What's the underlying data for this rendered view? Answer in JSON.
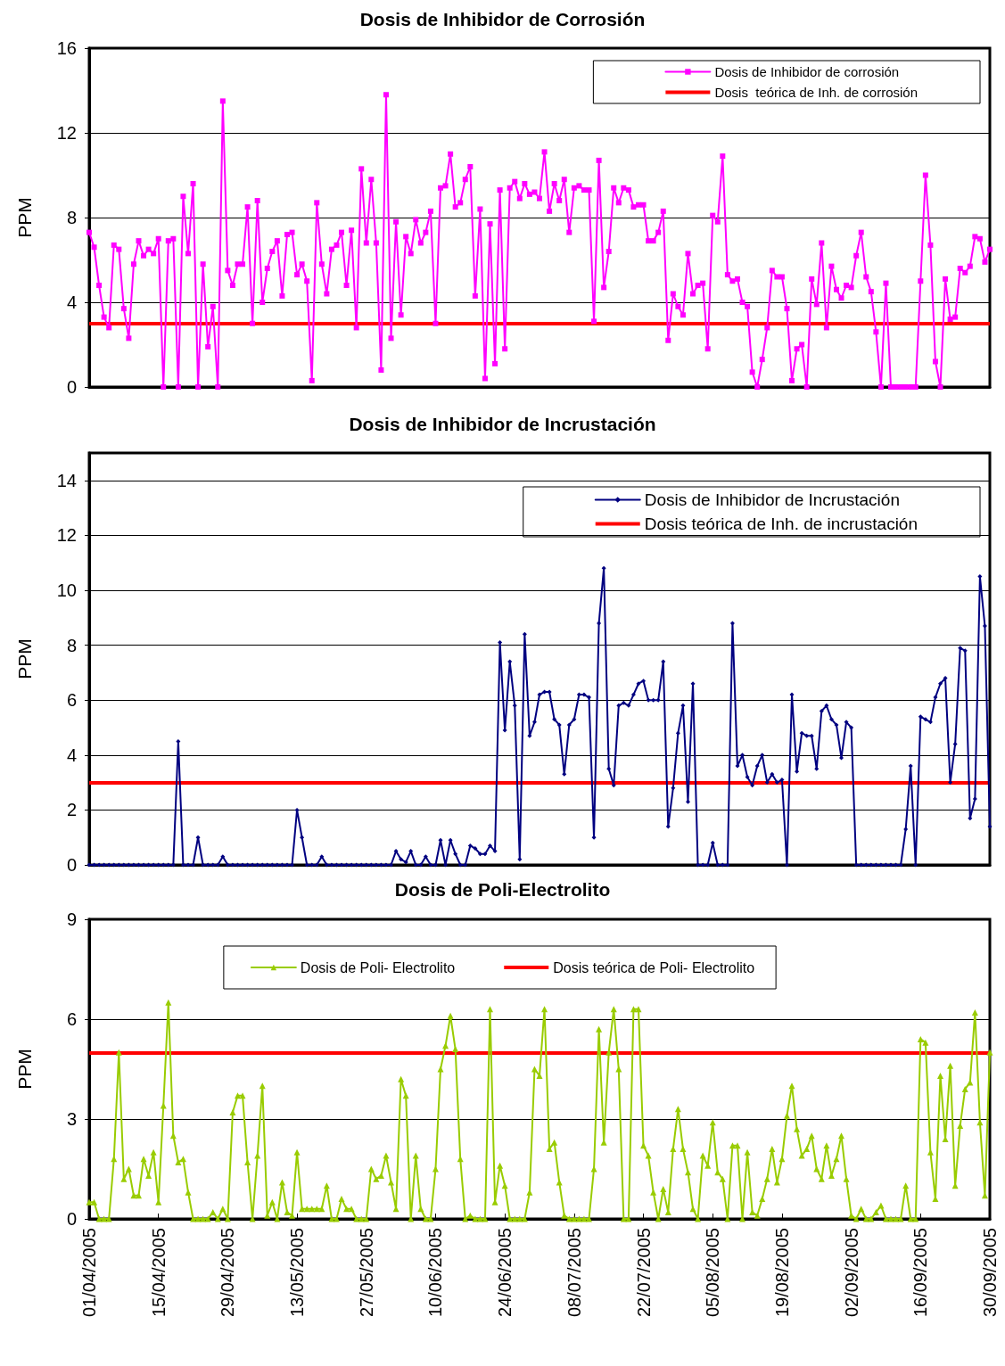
{
  "chart_data": [
    {
      "type": "line",
      "title": "Dosis de Inhibidor de Corrosión",
      "ylabel": "PPM",
      "categories": [
        null,
        null,
        null,
        null,
        null,
        null,
        null,
        null,
        null,
        null,
        null,
        null,
        null,
        null,
        null,
        null,
        null,
        null,
        null,
        null,
        null,
        null,
        null,
        null,
        null,
        null,
        null,
        null,
        null,
        null,
        null,
        null,
        null,
        null,
        null,
        null,
        null,
        null,
        null,
        null,
        null,
        null,
        null,
        null,
        null,
        null,
        null,
        null,
        null,
        null,
        null,
        null,
        null,
        null,
        null,
        null,
        null,
        null,
        null,
        null,
        null,
        null,
        null,
        null,
        null,
        null,
        null,
        null,
        null,
        null,
        null,
        null,
        null,
        null,
        null,
        null,
        null,
        null,
        null,
        null,
        null,
        null,
        null,
        null,
        null,
        null,
        null,
        null,
        null,
        null,
        null,
        null,
        null,
        null,
        null,
        null,
        null,
        null,
        null,
        null,
        null,
        null,
        null,
        null,
        null,
        null,
        null,
        null,
        null,
        null,
        null,
        null,
        null,
        null,
        null,
        null,
        null,
        null,
        null,
        null,
        null,
        null,
        null,
        null,
        null,
        null,
        null,
        null,
        null,
        null,
        null,
        null,
        null,
        null,
        null,
        null,
        null,
        null,
        null,
        null,
        null,
        null,
        null,
        null,
        null,
        null,
        null,
        null,
        null,
        null,
        null,
        null,
        null,
        null,
        null,
        null,
        null,
        null,
        null,
        null,
        null,
        null,
        null,
        null,
        null,
        null,
        null,
        null,
        null,
        null,
        null,
        null,
        null,
        null,
        null,
        null,
        null,
        null,
        null,
        null,
        null,
        null,
        null
      ],
      "series": [
        {
          "name": "Dosis de Inhibidor de corrosión",
          "color": "#ff00ff",
          "values": [
            7.3,
            6.6,
            4.8,
            3.3,
            2.8,
            6.7,
            6.5,
            3.7,
            2.3,
            5.8,
            6.9,
            6.2,
            6.5,
            6.3,
            7.0,
            0,
            6.9,
            7.0,
            0,
            9.0,
            6.3,
            9.6,
            0,
            5.8,
            1.9,
            3.8,
            0,
            13.5,
            5.5,
            4.8,
            5.8,
            5.8,
            8.5,
            3.0,
            8.8,
            4.0,
            5.6,
            6.4,
            6.9,
            4.3,
            7.2,
            7.3,
            5.3,
            5.8,
            5.0,
            0.3,
            8.7,
            5.8,
            4.4,
            6.5,
            6.7,
            7.3,
            4.8,
            7.4,
            2.8,
            10.3,
            6.8,
            9.8,
            6.8,
            0.8,
            13.8,
            2.3,
            7.8,
            3.4,
            7.1,
            6.3,
            7.9,
            6.8,
            7.3,
            8.3,
            3.0,
            9.4,
            9.5,
            11.0,
            8.5,
            8.7,
            9.8,
            10.4,
            4.3,
            8.4,
            0.4,
            7.7,
            1.1,
            9.3,
            1.8,
            9.4,
            9.7,
            8.9,
            9.6,
            9.1,
            9.2,
            8.9,
            11.1,
            8.3,
            9.6,
            8.8,
            9.8,
            7.3,
            9.4,
            9.5,
            9.3,
            9.3,
            3.1,
            10.7,
            4.7,
            6.4,
            9.4,
            8.7,
            9.4,
            9.3,
            8.5,
            8.6,
            8.6,
            6.9,
            6.9,
            7.3,
            8.3,
            2.2,
            4.4,
            3.8,
            3.4,
            6.3,
            4.4,
            4.8,
            4.9,
            1.8,
            8.1,
            7.8,
            10.9,
            5.3,
            5.0,
            5.1,
            4.0,
            3.8,
            0.7,
            0,
            1.3,
            2.8,
            5.5,
            5.2,
            5.2,
            3.7,
            0.3,
            1.8,
            2.0,
            0,
            5.1,
            3.9,
            6.8,
            2.8,
            5.7,
            4.6,
            4.2,
            4.8,
            4.7,
            6.2,
            7.3,
            5.2,
            4.5,
            2.6,
            0,
            4.9,
            0,
            0,
            0,
            0,
            0,
            0,
            5.0,
            10.0,
            6.7,
            1.2,
            0,
            5.1,
            3.2,
            3.3,
            5.6,
            5.4,
            5.7,
            7.1,
            7.0,
            5.9,
            6.5
          ]
        }
      ],
      "ref_lines": [
        {
          "axis": "y",
          "value": 3,
          "label": "Dosis  teórica de Inh. de corrosión",
          "color": "#ff0000"
        }
      ],
      "ylim": [
        0,
        16
      ],
      "yticks": [
        0,
        4,
        8,
        12,
        16
      ],
      "grid": "y",
      "legend": "top right",
      "marker": "square",
      "line_style": "solid",
      "tick_labels": "y"
    },
    {
      "type": "line",
      "title": "Dosis de Inhibidor de Incrustación",
      "ylabel": "PPM",
      "categories": [
        null,
        null,
        null,
        null,
        null,
        null,
        null,
        null,
        null,
        null,
        null,
        null,
        null,
        null,
        null,
        null,
        null,
        null,
        null,
        null,
        null,
        null,
        null,
        null,
        null,
        null,
        null,
        null,
        null,
        null,
        null,
        null,
        null,
        null,
        null,
        null,
        null,
        null,
        null,
        null,
        null,
        null,
        null,
        null,
        null,
        null,
        null,
        null,
        null,
        null,
        null,
        null,
        null,
        null,
        null,
        null,
        null,
        null,
        null,
        null,
        null,
        null,
        null,
        null,
        null,
        null,
        null,
        null,
        null,
        null,
        null,
        null,
        null,
        null,
        null,
        null,
        null,
        null,
        null,
        null,
        null,
        null,
        null,
        null,
        null,
        null,
        null,
        null,
        null,
        null,
        null,
        null,
        null,
        null,
        null,
        null,
        null,
        null,
        null,
        null,
        null,
        null,
        null,
        null,
        null,
        null,
        null,
        null,
        null,
        null,
        null,
        null,
        null,
        null,
        null,
        null,
        null,
        null,
        null,
        null,
        null,
        null,
        null,
        null,
        null,
        null,
        null,
        null,
        null,
        null,
        null,
        null,
        null,
        null,
        null,
        null,
        null,
        null,
        null,
        null,
        null,
        null,
        null,
        null,
        null,
        null,
        null,
        null,
        null,
        null,
        null,
        null,
        null,
        null,
        null,
        null,
        null,
        null,
        null,
        null,
        null,
        null,
        null,
        null,
        null,
        null,
        null,
        null,
        null,
        null,
        null,
        null,
        null,
        null,
        null,
        null,
        null,
        null,
        null,
        null,
        null,
        null,
        null
      ],
      "series": [
        {
          "name": "Dosis de Inhibidor de Incrustación",
          "color": "#000080",
          "values": [
            0,
            0,
            0,
            0,
            0,
            0,
            0,
            0,
            0,
            0,
            0,
            0,
            0,
            0,
            0,
            0,
            0,
            0,
            4.5,
            0,
            0,
            0,
            1.0,
            0,
            0,
            0,
            0,
            0.3,
            0,
            0,
            0,
            0,
            0,
            0,
            0,
            0,
            0,
            0,
            0,
            0,
            0,
            0,
            2.0,
            1.0,
            0,
            0,
            0,
            0.3,
            0,
            0,
            0,
            0,
            0,
            0,
            0,
            0,
            0,
            0,
            0,
            0,
            0,
            0,
            0.5,
            0.2,
            0.1,
            0.5,
            0,
            0,
            0.3,
            0,
            0,
            0.9,
            0,
            0.9,
            0.4,
            0,
            0,
            0.7,
            0.6,
            0.4,
            0.4,
            0.7,
            0.5,
            8.1,
            4.9,
            7.4,
            5.8,
            0.2,
            8.4,
            4.7,
            5.2,
            6.2,
            6.3,
            6.3,
            5.3,
            5.1,
            3.3,
            5.1,
            5.3,
            6.2,
            6.2,
            6.1,
            1.0,
            8.8,
            10.8,
            3.5,
            2.9,
            5.8,
            5.9,
            5.8,
            6.2,
            6.6,
            6.7,
            6.0,
            6.0,
            6.0,
            7.4,
            1.4,
            2.8,
            4.8,
            5.8,
            2.3,
            6.6,
            0,
            0,
            0,
            0.8,
            0,
            0,
            0,
            8.8,
            3.6,
            4.0,
            3.2,
            2.9,
            3.6,
            4.0,
            3.0,
            3.3,
            3.0,
            3.1,
            0,
            6.2,
            3.4,
            4.8,
            4.7,
            4.7,
            3.5,
            5.6,
            5.8,
            5.3,
            5.1,
            3.9,
            5.2,
            5.0,
            0,
            0,
            0,
            0,
            0,
            0,
            0,
            0,
            0,
            0,
            1.3,
            3.6,
            0,
            5.4,
            5.3,
            5.2,
            6.1,
            6.6,
            6.8,
            3.0,
            4.4,
            7.9,
            7.8,
            1.7,
            2.4,
            10.5,
            8.7,
            1.4
          ]
        }
      ],
      "ref_lines": [
        {
          "axis": "y",
          "value": 3,
          "label": "Dosis teórica de Inh. de incrustación",
          "color": "#ff0000"
        }
      ],
      "ylim": [
        0,
        15
      ],
      "yticks": [
        0,
        2,
        4,
        6,
        8,
        10,
        12,
        14
      ],
      "grid": "y",
      "legend": "top right",
      "marker": "diamond",
      "line_style": "solid",
      "tick_labels": "y"
    },
    {
      "type": "line",
      "title": "Dosis de Poli-Electrolito",
      "ylabel": "PPM",
      "categories": [
        "01/04/2005",
        null,
        null,
        null,
        null,
        null,
        null,
        null,
        null,
        null,
        null,
        null,
        null,
        null,
        "15/04/2005",
        null,
        null,
        null,
        null,
        null,
        null,
        null,
        null,
        null,
        null,
        null,
        null,
        null,
        "29/04/2005",
        null,
        null,
        null,
        null,
        null,
        null,
        null,
        null,
        null,
        null,
        null,
        null,
        null,
        "13/05/2005",
        null,
        null,
        null,
        null,
        null,
        null,
        null,
        null,
        null,
        null,
        null,
        null,
        null,
        "27/05/2005",
        null,
        null,
        null,
        null,
        null,
        null,
        null,
        null,
        null,
        null,
        null,
        null,
        null,
        "10/06/2005",
        null,
        null,
        null,
        null,
        null,
        null,
        null,
        null,
        null,
        null,
        null,
        null,
        null,
        "24/06/2005",
        null,
        null,
        null,
        null,
        null,
        null,
        null,
        null,
        null,
        null,
        null,
        null,
        null,
        "08/07/2005",
        null,
        null,
        null,
        null,
        null,
        null,
        null,
        null,
        null,
        null,
        null,
        null,
        null,
        "22/07/2005",
        null,
        null,
        null,
        null,
        null,
        null,
        null,
        null,
        null,
        null,
        null,
        null,
        null,
        "05/08/2005",
        null,
        null,
        null,
        null,
        null,
        null,
        null,
        null,
        null,
        null,
        null,
        null,
        null,
        "19/08/2005",
        null,
        null,
        null,
        null,
        null,
        null,
        null,
        null,
        null,
        null,
        null,
        null,
        null,
        "02/09/2005",
        null,
        null,
        null,
        null,
        null,
        null,
        null,
        null,
        null,
        null,
        null,
        null,
        null,
        "16/09/2005",
        null,
        null,
        null,
        null,
        null,
        null,
        null,
        null,
        null,
        null,
        null,
        null,
        null,
        "30/09/2005"
      ],
      "series": [
        {
          "name": "Dosis de Poli- Electrolito",
          "color": "#99cc00",
          "values": [
            0.5,
            0.5,
            0,
            0,
            0,
            1.8,
            5.0,
            1.2,
            1.5,
            0.7,
            0.7,
            1.8,
            1.3,
            2.0,
            0.5,
            3.4,
            6.5,
            2.5,
            1.7,
            1.8,
            0.8,
            0,
            0,
            0,
            0,
            0.2,
            0,
            0.3,
            0,
            3.2,
            3.7,
            3.7,
            1.7,
            0,
            1.9,
            4.0,
            0.1,
            0.5,
            0,
            1.1,
            0.2,
            0.1,
            2.0,
            0.3,
            0.3,
            0.3,
            0.3,
            0.3,
            1.0,
            0,
            0,
            0.6,
            0.3,
            0.3,
            0,
            0,
            0,
            1.5,
            1.2,
            1.3,
            1.9,
            1.1,
            0.3,
            4.2,
            3.7,
            0,
            1.9,
            0.3,
            0,
            0,
            1.5,
            4.5,
            5.2,
            6.1,
            5.1,
            1.8,
            0,
            0.1,
            0,
            0,
            0,
            6.3,
            0.5,
            1.6,
            1.0,
            0,
            0,
            0,
            0,
            0.8,
            4.5,
            4.3,
            6.3,
            2.1,
            2.3,
            1.1,
            0.1,
            0,
            0,
            0,
            0,
            0,
            1.5,
            5.7,
            2.3,
            5.0,
            6.3,
            4.5,
            0,
            0,
            6.3,
            6.3,
            2.2,
            1.9,
            0.8,
            0,
            0.9,
            0.2,
            2.1,
            3.3,
            2.1,
            1.4,
            0.3,
            0,
            1.9,
            1.6,
            2.9,
            1.4,
            1.2,
            0,
            2.2,
            2.2,
            0,
            2.0,
            0.2,
            0.1,
            0.6,
            1.2,
            2.1,
            1.1,
            1.8,
            3.1,
            4.0,
            2.7,
            1.9,
            2.1,
            2.5,
            1.5,
            1.2,
            2.2,
            1.3,
            1.8,
            2.5,
            1.2,
            0.1,
            0,
            0.3,
            0,
            0,
            0.2,
            0.4,
            0,
            0,
            0,
            0,
            1.0,
            0,
            0,
            5.4,
            5.3,
            2.0,
            0.6,
            4.3,
            2.4,
            4.6,
            1.0,
            2.8,
            3.9,
            4.1,
            6.2,
            2.9,
            0.7,
            5.0
          ]
        }
      ],
      "ref_lines": [
        {
          "axis": "y",
          "value": 5,
          "label": "Dosis teórica de Poli- Electrolito",
          "color": "#ff0000"
        }
      ],
      "ylim": [
        0,
        9
      ],
      "yticks": [
        0,
        3,
        6,
        9
      ],
      "grid": "y",
      "legend": "top",
      "marker": "triangle",
      "line_style": "solid"
    }
  ]
}
